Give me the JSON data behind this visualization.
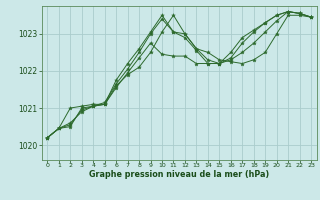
{
  "bg_color": "#cce8e8",
  "grid_color": "#aacccc",
  "line_color": "#2d6a2d",
  "marker_color": "#2d6a2d",
  "xlabel": "Graphe pression niveau de la mer (hPa)",
  "xlabel_color": "#1a4d1a",
  "ylabel_color": "#1a4d1a",
  "xlim": [
    -0.5,
    23.5
  ],
  "ylim": [
    1019.6,
    1023.75
  ],
  "yticks": [
    1020,
    1021,
    1022,
    1023
  ],
  "xticks": [
    0,
    1,
    2,
    3,
    4,
    5,
    6,
    7,
    8,
    9,
    10,
    11,
    12,
    13,
    14,
    15,
    16,
    17,
    18,
    19,
    20,
    21,
    22,
    23
  ],
  "series": [
    [
      1020.2,
      1020.45,
      1020.5,
      1021.0,
      1021.05,
      1021.1,
      1021.6,
      1021.9,
      1022.1,
      1022.5,
      1023.05,
      1023.5,
      1023.0,
      1022.6,
      1022.5,
      1022.3,
      1022.25,
      1022.2,
      1022.3,
      1022.5,
      1023.0,
      1023.5,
      1023.5,
      1023.45
    ],
    [
      1020.2,
      1020.45,
      1020.55,
      1020.95,
      1021.05,
      1021.1,
      1021.55,
      1021.95,
      1022.35,
      1022.75,
      1022.45,
      1022.4,
      1022.4,
      1022.2,
      1022.2,
      1022.2,
      1022.3,
      1022.5,
      1022.75,
      1023.05,
      1023.35,
      1023.6,
      1023.55,
      1023.45
    ],
    [
      1020.2,
      1020.45,
      1020.6,
      1020.9,
      1021.05,
      1021.15,
      1021.65,
      1022.05,
      1022.5,
      1023.0,
      1023.4,
      1023.05,
      1022.9,
      1022.55,
      1022.2,
      1022.2,
      1022.5,
      1022.9,
      1023.1,
      1023.3,
      1023.5,
      1023.6,
      1023.55,
      1023.45
    ],
    [
      1020.2,
      1020.45,
      1021.0,
      1021.05,
      1021.1,
      1021.1,
      1021.75,
      1022.2,
      1022.6,
      1023.05,
      1023.5,
      1023.05,
      1023.0,
      1022.6,
      1022.3,
      1022.2,
      1022.35,
      1022.75,
      1023.05,
      1023.3,
      1023.5,
      1023.6,
      1023.55,
      1023.45
    ]
  ]
}
